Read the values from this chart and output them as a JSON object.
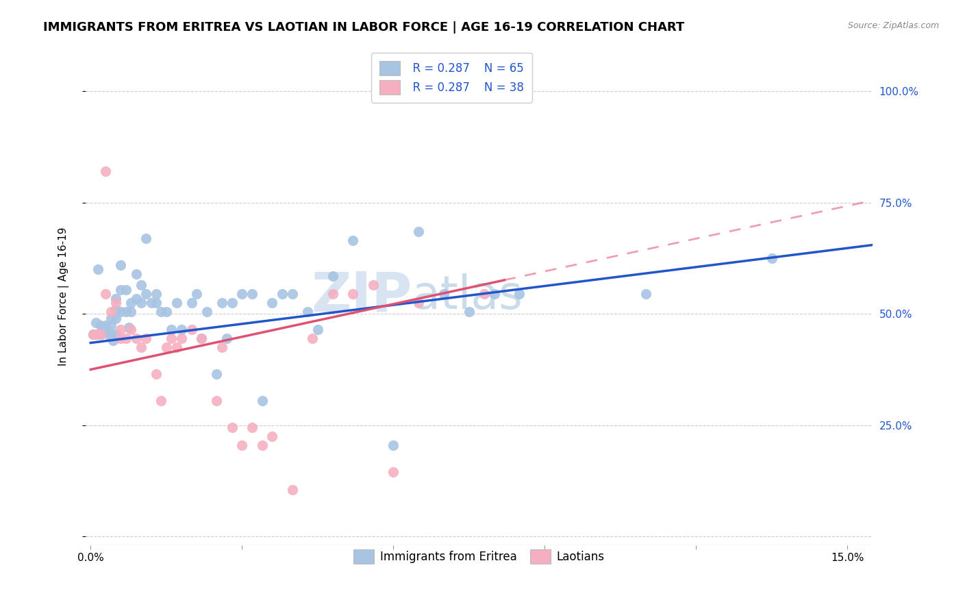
{
  "title": "IMMIGRANTS FROM ERITREA VS LAOTIAN IN LABOR FORCE | AGE 16-19 CORRELATION CHART",
  "source": "Source: ZipAtlas.com",
  "ylabel": "In Labor Force | Age 16-19",
  "xmin": -0.001,
  "xmax": 0.155,
  "ymin": -0.02,
  "ymax": 1.1,
  "y_ticks": [
    0.0,
    0.25,
    0.5,
    0.75,
    1.0
  ],
  "y_tick_labels": [
    "",
    "25.0%",
    "50.0%",
    "75.0%",
    "100.0%"
  ],
  "x_tick_left": "0.0%",
  "x_tick_right": "15.0%",
  "watermark_zip": "ZIP",
  "watermark_atlas": "atlas",
  "legend_r1": "R = 0.287",
  "legend_n1": "N = 65",
  "legend_r2": "R = 0.287",
  "legend_n2": "N = 38",
  "series1_label": "Immigrants from Eritrea",
  "series2_label": "Laotians",
  "series1_color": "#a8c4e2",
  "series2_color": "#f5afc0",
  "line1_color": "#2255cc",
  "line2_color": "#e05070",
  "line1_x": [
    0.0,
    0.155
  ],
  "line1_y": [
    0.435,
    0.655
  ],
  "line2_x": [
    0.0,
    0.155
  ],
  "line2_y": [
    0.375,
    0.755
  ],
  "line2_solid_end": 0.082,
  "scatter1_x": [
    0.0005,
    0.001,
    0.0015,
    0.002,
    0.002,
    0.0025,
    0.003,
    0.003,
    0.0035,
    0.004,
    0.004,
    0.004,
    0.0045,
    0.005,
    0.005,
    0.005,
    0.005,
    0.006,
    0.006,
    0.006,
    0.007,
    0.007,
    0.0075,
    0.008,
    0.008,
    0.009,
    0.009,
    0.01,
    0.01,
    0.011,
    0.011,
    0.012,
    0.013,
    0.013,
    0.014,
    0.015,
    0.016,
    0.017,
    0.018,
    0.02,
    0.021,
    0.022,
    0.023,
    0.025,
    0.026,
    0.027,
    0.028,
    0.03,
    0.032,
    0.034,
    0.036,
    0.038,
    0.04,
    0.043,
    0.045,
    0.048,
    0.052,
    0.06,
    0.065,
    0.07,
    0.075,
    0.08,
    0.085,
    0.11,
    0.135
  ],
  "scatter1_y": [
    0.455,
    0.48,
    0.6,
    0.475,
    0.455,
    0.465,
    0.475,
    0.46,
    0.455,
    0.49,
    0.475,
    0.455,
    0.44,
    0.535,
    0.51,
    0.49,
    0.455,
    0.61,
    0.555,
    0.505,
    0.555,
    0.505,
    0.47,
    0.525,
    0.505,
    0.59,
    0.535,
    0.565,
    0.525,
    0.67,
    0.545,
    0.525,
    0.545,
    0.525,
    0.505,
    0.505,
    0.465,
    0.525,
    0.465,
    0.525,
    0.545,
    0.445,
    0.505,
    0.365,
    0.525,
    0.445,
    0.525,
    0.545,
    0.545,
    0.305,
    0.525,
    0.545,
    0.545,
    0.505,
    0.465,
    0.585,
    0.665,
    0.205,
    0.685,
    0.545,
    0.505,
    0.545,
    0.545,
    0.545,
    0.625
  ],
  "scatter2_x": [
    0.0005,
    0.001,
    0.0015,
    0.002,
    0.003,
    0.003,
    0.004,
    0.005,
    0.006,
    0.006,
    0.007,
    0.008,
    0.009,
    0.01,
    0.011,
    0.013,
    0.014,
    0.015,
    0.016,
    0.017,
    0.018,
    0.02,
    0.022,
    0.025,
    0.026,
    0.028,
    0.03,
    0.032,
    0.034,
    0.036,
    0.04,
    0.044,
    0.048,
    0.052,
    0.056,
    0.06,
    0.065,
    0.078
  ],
  "scatter2_y": [
    0.455,
    0.455,
    0.455,
    0.455,
    0.82,
    0.545,
    0.505,
    0.525,
    0.465,
    0.445,
    0.445,
    0.465,
    0.445,
    0.425,
    0.445,
    0.365,
    0.305,
    0.425,
    0.445,
    0.425,
    0.445,
    0.465,
    0.445,
    0.305,
    0.425,
    0.245,
    0.205,
    0.245,
    0.205,
    0.225,
    0.105,
    0.445,
    0.545,
    0.545,
    0.565,
    0.145,
    0.525,
    0.545
  ],
  "background_color": "#ffffff",
  "grid_color": "#cccccc",
  "title_fontsize": 13,
  "label_fontsize": 11,
  "tick_fontsize": 11,
  "legend_fontsize": 12
}
